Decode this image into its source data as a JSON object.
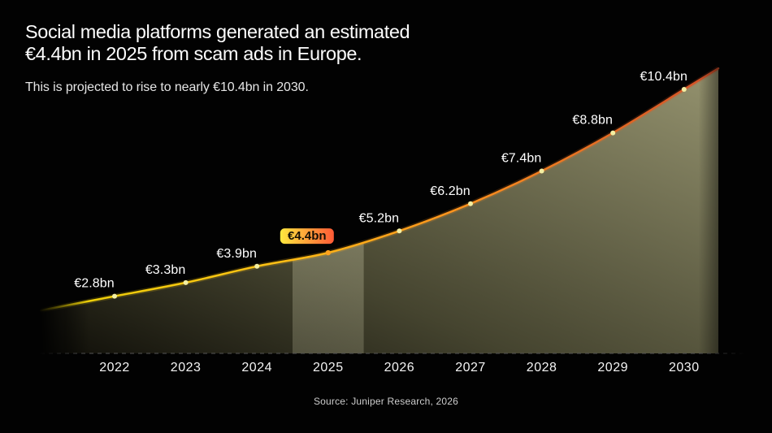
{
  "header": {
    "title_line1": "Social media platforms generated an estimated",
    "title_line2": "€4.4bn in 2025 from scam ads in Europe.",
    "subtitle": "This is projected to rise to nearly €10.4bn in 2030."
  },
  "chart_data": {
    "type": "area",
    "title": "Social media platforms generated an estimated €4.4bn in 2025 from scam ads in Europe.",
    "subtitle": "This is projected to rise to nearly €10.4bn in 2030.",
    "categories": [
      "2022",
      "2023",
      "2024",
      "2025",
      "2026",
      "2027",
      "2028",
      "2029",
      "2030"
    ],
    "values": [
      2.8,
      3.3,
      3.9,
      4.4,
      5.2,
      6.2,
      7.4,
      8.8,
      10.4
    ],
    "point_labels": [
      "€2.8bn",
      "€3.3bn",
      "€3.9bn",
      "€4.4bn",
      "€5.2bn",
      "€6.2bn",
      "€7.4bn",
      "€8.8bn",
      "€10.4bn"
    ],
    "unit": "€bn",
    "highlight_index": 3,
    "highlight_category": "2025",
    "highlight_label": "€4.4bn",
    "xlabel": "",
    "ylabel": "",
    "ylim": [
      0,
      11
    ],
    "grid": false,
    "legend": "none",
    "colors": {
      "background": "#020202",
      "line_yellow": "#e8d206",
      "line_gold": "#ffc414",
      "line_orange": "#ff951d",
      "line_red": "#d14e28",
      "area_dark": "#0f0e08",
      "area_mid": "#45442f",
      "area_light": "#95936f",
      "band_light": "#e8e6c4",
      "band_dim": "#d8d6b2",
      "badge_yellow": "#ffe93e",
      "badge_red": "#ff5a36",
      "badge_text": "#141005",
      "point": "#f3efa2",
      "point_highlight": "#ffa21f",
      "label_color": "#ffffff",
      "axis_label_color": "#f4f4f4",
      "axis_line": "#565656"
    }
  },
  "footer": {
    "source": "Source: Juniper Research, 2026"
  }
}
